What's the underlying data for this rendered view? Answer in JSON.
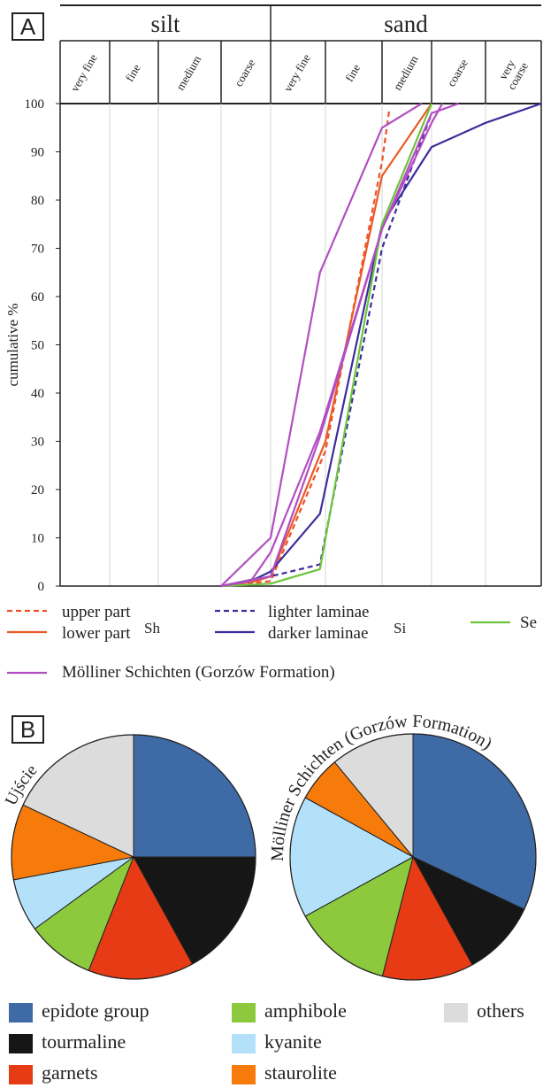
{
  "panels": {
    "a": "A",
    "b": "B"
  },
  "chart_data": [
    {
      "type": "line",
      "ylabel": "cumulative %",
      "ylim": [
        0,
        100
      ],
      "yticks": [
        "0",
        "10",
        "20",
        "30",
        "40",
        "50",
        "60",
        "70",
        "80",
        "90",
        "100"
      ],
      "grain_groups": [
        "silt",
        "sand"
      ],
      "grain_classes": [
        "very fine",
        "fine",
        "medium",
        "coarse",
        "very fine",
        "fine",
        "medium",
        "coarse",
        "very coarse"
      ],
      "x_boundaries": [
        0,
        1,
        2,
        3,
        4,
        5,
        6,
        7,
        8,
        9
      ],
      "series": [
        {
          "name": "upper part",
          "color": "#f0502a",
          "dash": true,
          "points": [
            [
              3.0,
              0
            ],
            [
              4.0,
              1
            ],
            [
              5.0,
              28
            ],
            [
              6.0,
              88
            ],
            [
              6.15,
              99
            ]
          ]
        },
        {
          "name": "lower part",
          "color": "#ea5a24",
          "dash": false,
          "points": [
            [
              3.0,
              0
            ],
            [
              3.7,
              1
            ],
            [
              4.0,
              2
            ],
            [
              5.0,
              30
            ],
            [
              6.0,
              85
            ],
            [
              7.0,
              100
            ]
          ]
        },
        {
          "name": "lighter laminae",
          "color": "#3c2d9c",
          "dash": true,
          "points": [
            [
              3.0,
              0
            ],
            [
              4.0,
              2
            ],
            [
              4.9,
              4.5
            ],
            [
              6.0,
              70
            ],
            [
              7.0,
              98
            ]
          ]
        },
        {
          "name": "darker laminae",
          "color": "#3c2d9c",
          "dash": false,
          "points": [
            [
              3.0,
              0
            ],
            [
              3.7,
              1.5
            ],
            [
              4.0,
              3
            ],
            [
              4.9,
              15
            ],
            [
              6.0,
              75
            ],
            [
              7.0,
              91
            ],
            [
              8.0,
              96
            ],
            [
              9.0,
              100
            ]
          ]
        },
        {
          "name": "Se",
          "color": "#6cc43a",
          "dash": false,
          "points": [
            [
              3.0,
              0
            ],
            [
              4.0,
              0.5
            ],
            [
              4.9,
              3.5
            ],
            [
              6.0,
              75
            ],
            [
              7.0,
              100
            ]
          ]
        },
        {
          "name": "Mölliner Schichten (Gorzów Formation)",
          "color": "#b34ec2",
          "dash": false,
          "points": [
            [
              3.0,
              0
            ],
            [
              4.0,
              10
            ],
            [
              4.9,
              65
            ],
            [
              6.0,
              95
            ],
            [
              6.8,
              100
            ]
          ]
        },
        {
          "name": "Mölliner Schichten (Gorzów Formation)",
          "color": "#b34ec2",
          "dash": false,
          "points": [
            [
              3.0,
              0
            ],
            [
              3.6,
              1
            ],
            [
              4.0,
              7
            ],
            [
              4.9,
              32
            ],
            [
              6.0,
              74
            ],
            [
              7.0,
              98
            ],
            [
              7.5,
              100
            ]
          ]
        },
        {
          "name": "Mölliner Schichten (Gorzów Formation)",
          "color": "#b34ec2",
          "dash": false,
          "points": [
            [
              3.0,
              0
            ],
            [
              3.5,
              1
            ],
            [
              4.0,
              2
            ],
            [
              4.9,
              31
            ],
            [
              6.0,
              74
            ],
            [
              7.0,
              96
            ],
            [
              7.2,
              100
            ]
          ]
        }
      ],
      "legend": {
        "group_sh": "Sh",
        "group_si": "Si",
        "upper": "upper part",
        "lower": "lower part",
        "lighter": "lighter laminae",
        "darker": "darker laminae",
        "se": "Se",
        "moll": "Mölliner Schichten (Gorzów Formation)"
      }
    },
    {
      "type": "pie",
      "title": "Ujście",
      "labels": [
        "epidote group",
        "tourmaline",
        "garnets",
        "amphibole",
        "kyanite",
        "staurolite",
        "others"
      ],
      "values": [
        25,
        17,
        14,
        9,
        7,
        10,
        18
      ],
      "colors": [
        "#3e6aa6",
        "#161616",
        "#e63b14",
        "#8cc93d",
        "#b3e1fa",
        "#f77b0a",
        "#dcdcdc"
      ]
    },
    {
      "type": "pie",
      "title": "Mölliner Schichten (Gorzów Formation)",
      "labels": [
        "epidote group",
        "tourmaline",
        "garnets",
        "amphibole",
        "kyanite",
        "staurolite",
        "others"
      ],
      "values": [
        32,
        10,
        12,
        13,
        16,
        6,
        11
      ],
      "colors": [
        "#3e6aa6",
        "#161616",
        "#e63b14",
        "#8cc93d",
        "#b3e1fa",
        "#f77b0a",
        "#dcdcdc"
      ]
    }
  ],
  "mineral_legend": [
    {
      "label": "epidote group",
      "color": "#3e6aa6"
    },
    {
      "label": "tourmaline",
      "color": "#161616"
    },
    {
      "label": "garnets",
      "color": "#e63b14"
    },
    {
      "label": "amphibole",
      "color": "#8cc93d"
    },
    {
      "label": "kyanite",
      "color": "#b3e1fa"
    },
    {
      "label": "staurolite",
      "color": "#f77b0a"
    },
    {
      "label": "others",
      "color": "#dcdcdc"
    }
  ]
}
